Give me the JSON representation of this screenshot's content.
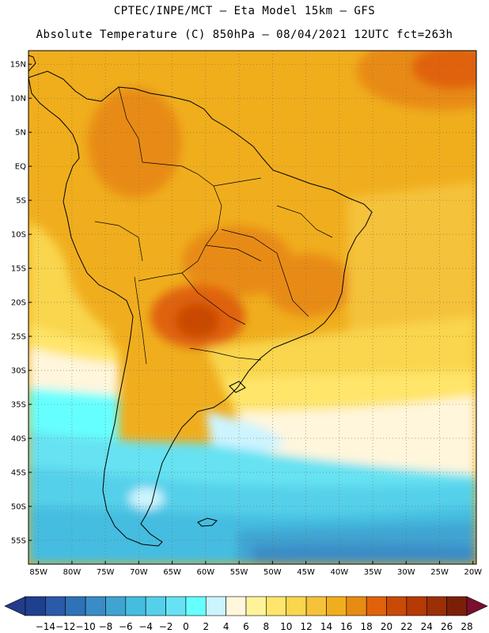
{
  "title": {
    "line1": "CPTEC/INPE/MCT –  Eta Model 15km – GFS",
    "line2": "Absolute Temperature (C) 850hPa – 08/04/2021 12UTC fct=263h"
  },
  "axes": {
    "lat_labels": [
      "15N",
      "10N",
      "5N",
      "EQ",
      "5S",
      "10S",
      "15S",
      "20S",
      "25S",
      "30S",
      "35S",
      "40S",
      "45S",
      "50S",
      "55S"
    ],
    "lon_labels": [
      "85W",
      "80W",
      "75W",
      "70W",
      "65W",
      "60W",
      "55W",
      "50W",
      "45W",
      "40W",
      "35W",
      "30W",
      "25W",
      "20W"
    ]
  },
  "colorbar": {
    "labels": [
      "-14",
      "-12",
      "-10",
      "-8",
      "-6",
      "-4",
      "-2",
      "0",
      "2",
      "4",
      "6",
      "8",
      "10",
      "12",
      "14",
      "16",
      "18",
      "20",
      "22",
      "24",
      "26",
      "28"
    ],
    "colors": [
      "#1f3f8f",
      "#2a5aa8",
      "#2f72b8",
      "#3a8cc6",
      "#3fa4d2",
      "#45bde0",
      "#55d0ea",
      "#66e2f2",
      "#66ffff",
      "#ccf4ff",
      "#fff6dc",
      "#fff39a",
      "#ffe56b",
      "#f9d64d",
      "#f5c23a",
      "#f0ae1e",
      "#e88b12",
      "#e0620a",
      "#c94a06",
      "#b53a04",
      "#9b2f06",
      "#7a2008"
    ],
    "under_color": "#233b8a",
    "over_color": "#7a0f2e"
  },
  "field": {
    "variable": "Absolute Temperature (C)",
    "level": "850hPa",
    "min_c": -6,
    "max_c": 26
  }
}
